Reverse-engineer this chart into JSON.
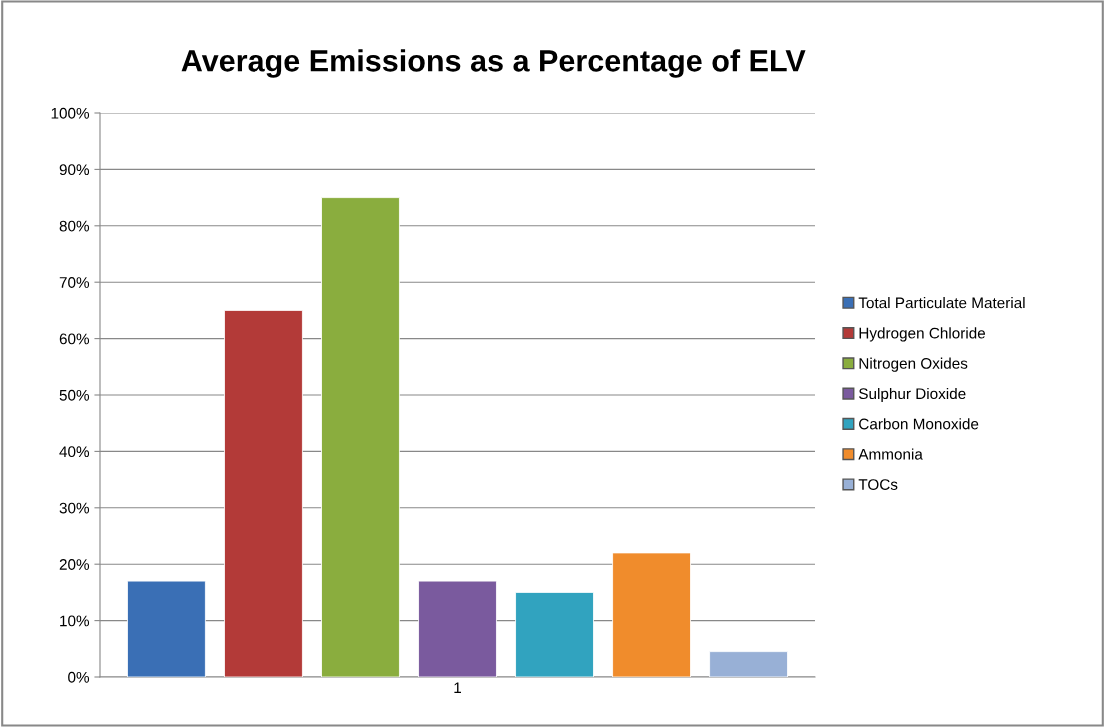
{
  "chart_data": {
    "type": "bar",
    "title": "Average Emissions as a Percentage of ELV",
    "categories": [
      "1"
    ],
    "series": [
      {
        "name": "Total Particulate Material",
        "color": "#3a6fb5",
        "values": [
          17
        ]
      },
      {
        "name": "Hydrogen Chloride",
        "color": "#b33a38",
        "values": [
          65
        ]
      },
      {
        "name": "Nitrogen Oxides",
        "color": "#8aad3e",
        "values": [
          85
        ]
      },
      {
        "name": "Sulphur Dioxide",
        "color": "#7a5a9e",
        "values": [
          17
        ]
      },
      {
        "name": "Carbon Monoxide",
        "color": "#31a3bf",
        "values": [
          15
        ]
      },
      {
        "name": "Ammonia",
        "color": "#f08c2c",
        "values": [
          22
        ]
      },
      {
        "name": "TOCs",
        "color": "#98b0d6",
        "values": [
          4.5
        ]
      }
    ],
    "ylim": [
      0,
      100
    ],
    "yticks": [
      {
        "value": 0,
        "label": "0%"
      },
      {
        "value": 10,
        "label": "10%"
      },
      {
        "value": 20,
        "label": "20%"
      },
      {
        "value": 30,
        "label": "30%"
      },
      {
        "value": 40,
        "label": "40%"
      },
      {
        "value": 50,
        "label": "50%"
      },
      {
        "value": 60,
        "label": "60%"
      },
      {
        "value": 70,
        "label": "70%"
      },
      {
        "value": 80,
        "label": "80%"
      },
      {
        "value": 90,
        "label": "90%"
      },
      {
        "value": 100,
        "label": "100%"
      }
    ],
    "grid": "y",
    "legend": "right"
  }
}
